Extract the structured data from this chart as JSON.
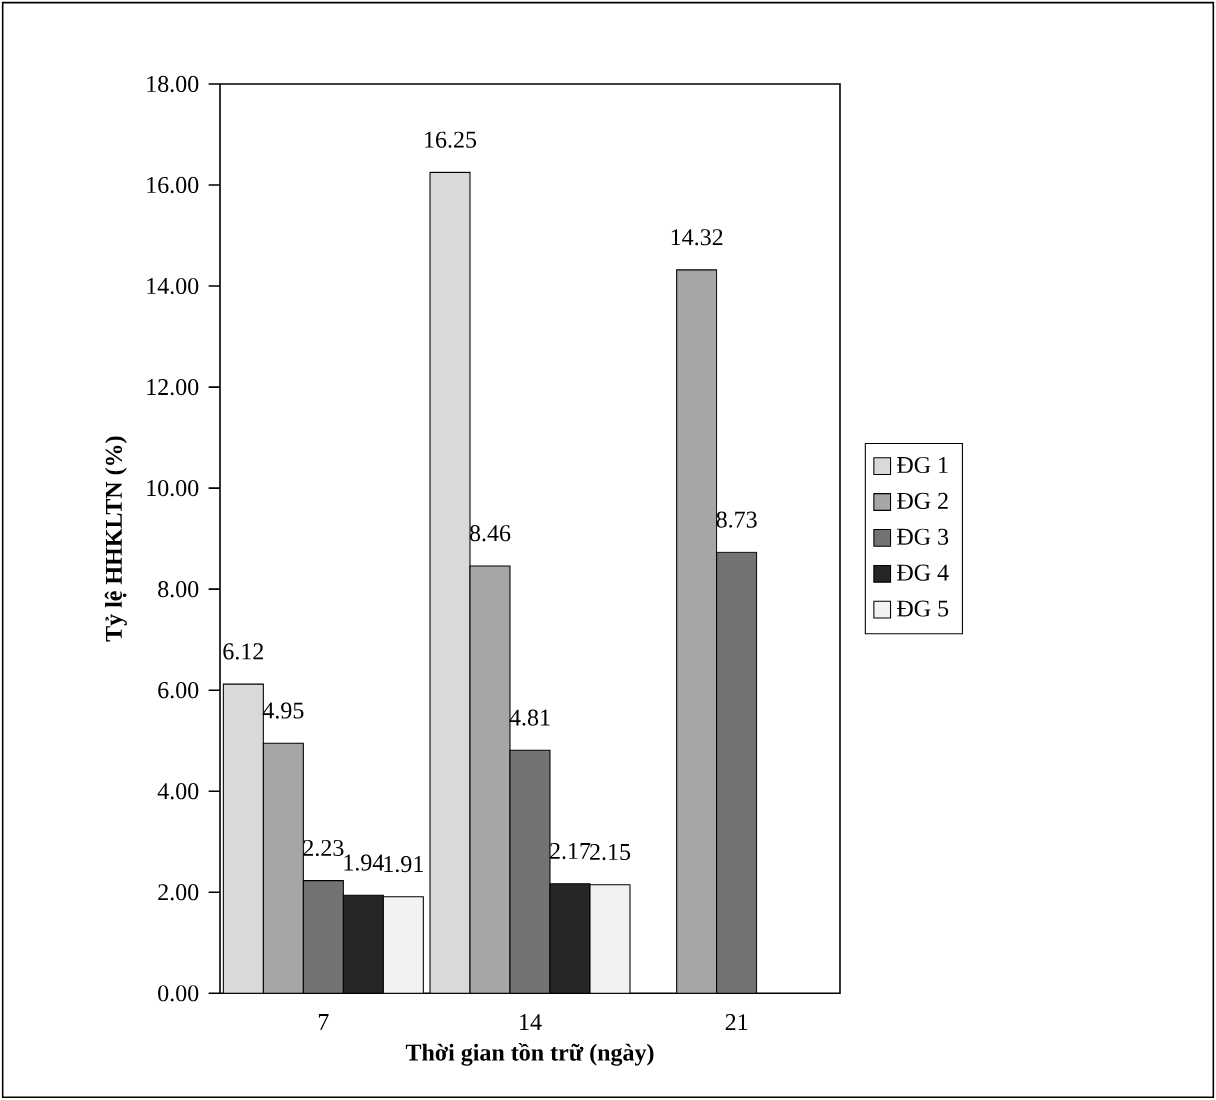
{
  "chart_data": {
    "type": "bar",
    "xlabel": "Thời gian tồn trữ (ngày)",
    "ylabel": "Tỷ lệ HHKLTN (%)",
    "categories": [
      "7",
      "14",
      "21"
    ],
    "series": [
      {
        "name": "ĐG 1",
        "color": "#d9d9d9",
        "values": [
          6.12,
          16.25,
          null
        ]
      },
      {
        "name": "ĐG 2",
        "color": "#a6a6a6",
        "values": [
          4.95,
          8.46,
          14.32
        ]
      },
      {
        "name": "ĐG 3",
        "color": "#737373",
        "values": [
          2.23,
          4.81,
          8.73
        ]
      },
      {
        "name": "ĐG 4",
        "color": "#262626",
        "values": [
          1.94,
          2.17,
          null
        ]
      },
      {
        "name": "ĐG 5",
        "color": "#f2f2f2",
        "values": [
          1.91,
          2.15,
          null
        ]
      }
    ],
    "ylim": [
      0,
      18
    ],
    "yticks": [
      {
        "value": 0,
        "label": "0.00"
      },
      {
        "value": 2,
        "label": "2.00"
      },
      {
        "value": 4,
        "label": "4.00"
      },
      {
        "value": 6,
        "label": "6.00"
      },
      {
        "value": 8,
        "label": "8.00"
      },
      {
        "value": 10,
        "label": "10.00"
      },
      {
        "value": 12,
        "label": "12.00"
      },
      {
        "value": 14,
        "label": "14.00"
      },
      {
        "value": 16,
        "label": "16.00"
      },
      {
        "value": 18,
        "label": "18.00"
      }
    ],
    "data_labels": true,
    "grid": false,
    "legend": "right"
  }
}
